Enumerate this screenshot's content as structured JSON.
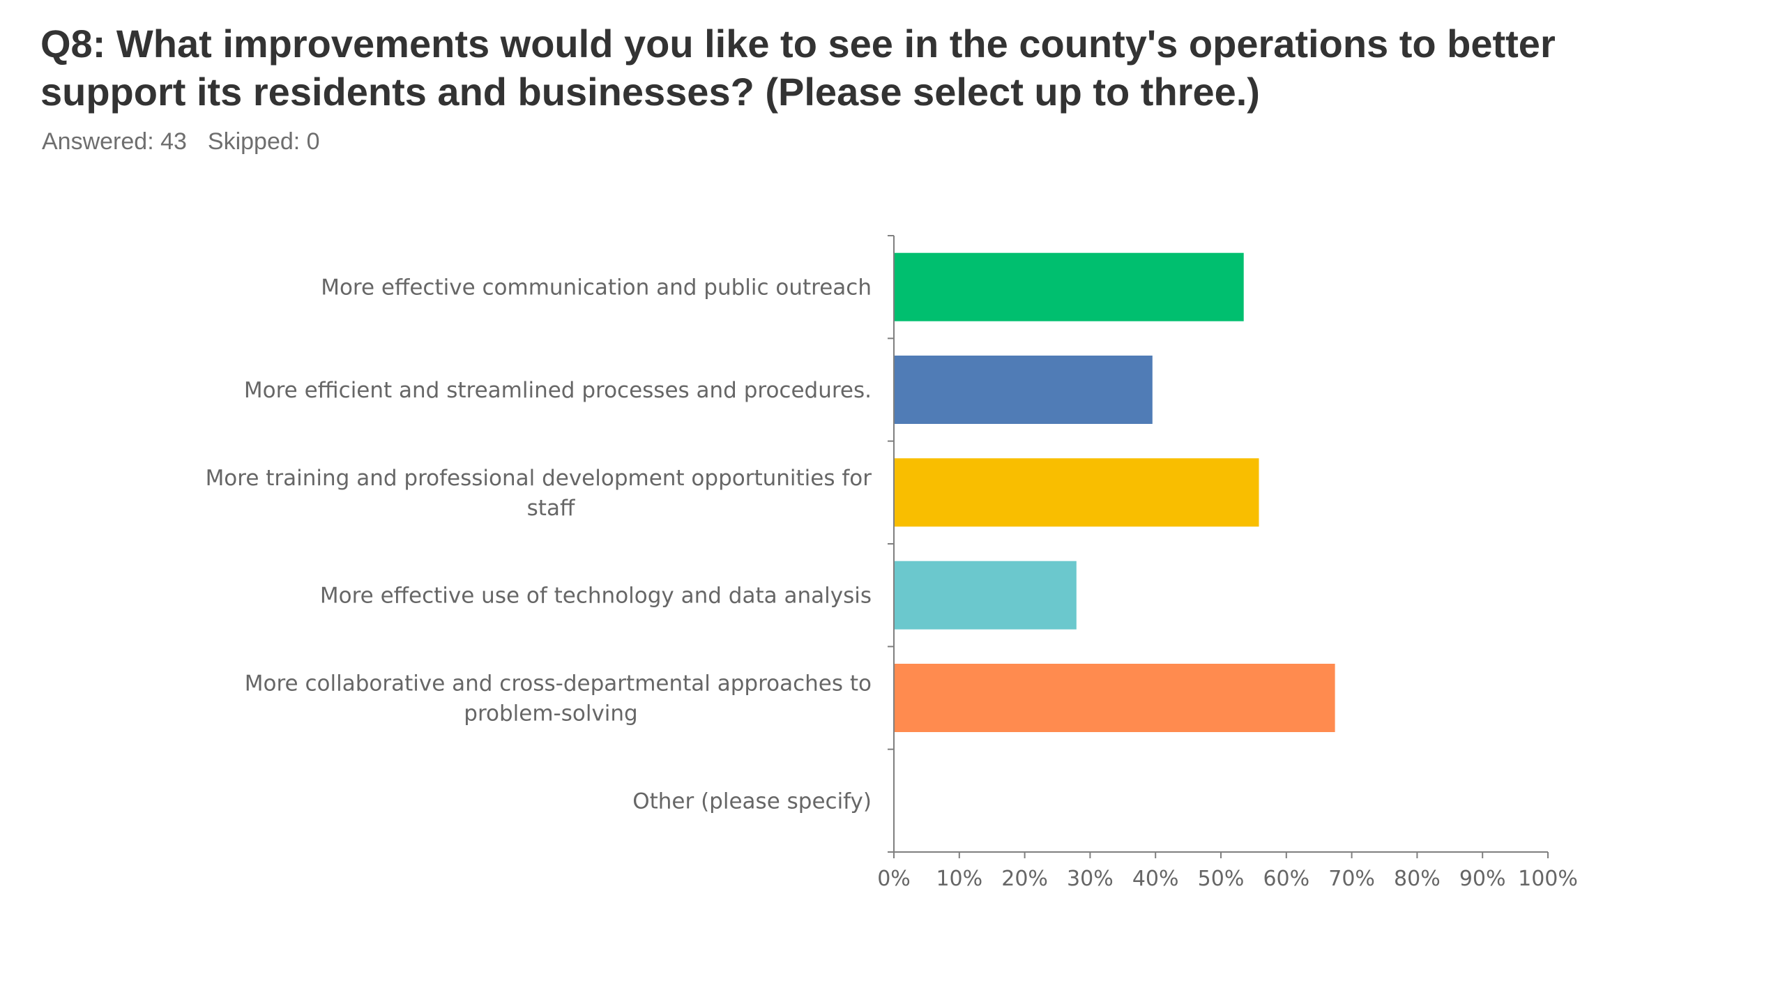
{
  "header": {
    "title": "Q8: What improvements would you like to see in the county's operations to better support its residents and businesses? (Please select up to three.)",
    "answered": "Answered: 43",
    "skipped": "Skipped: 0"
  },
  "chart_data": {
    "type": "bar",
    "orientation": "horizontal",
    "title": "Q8: What improvements would you like to see in the county's operations to better support its residents and businesses? (Please select up to three.)",
    "categories": [
      [
        "More effective communication and public outreach"
      ],
      [
        "More efficient and streamlined processes and procedures."
      ],
      [
        "More training and professional development opportunities for",
        "staff"
      ],
      [
        "More effective use of technology and data analysis"
      ],
      [
        "More collaborative and cross-departmental approaches to",
        "problem-solving"
      ],
      [
        "Other (please specify)"
      ]
    ],
    "values": [
      53.49,
      39.53,
      55.81,
      27.91,
      67.44,
      0
    ],
    "colors": [
      "#00bf6f",
      "#507cb6",
      "#f9be00",
      "#6bc8cd",
      "#ff8b4f",
      "#7d5ba6"
    ],
    "xlim": [
      0,
      100
    ],
    "xticks": [
      "0%",
      "10%",
      "20%",
      "30%",
      "40%",
      "50%",
      "60%",
      "70%",
      "80%",
      "90%",
      "100%"
    ],
    "xlabel": "",
    "ylabel": "",
    "grid": false,
    "legend": "none"
  }
}
